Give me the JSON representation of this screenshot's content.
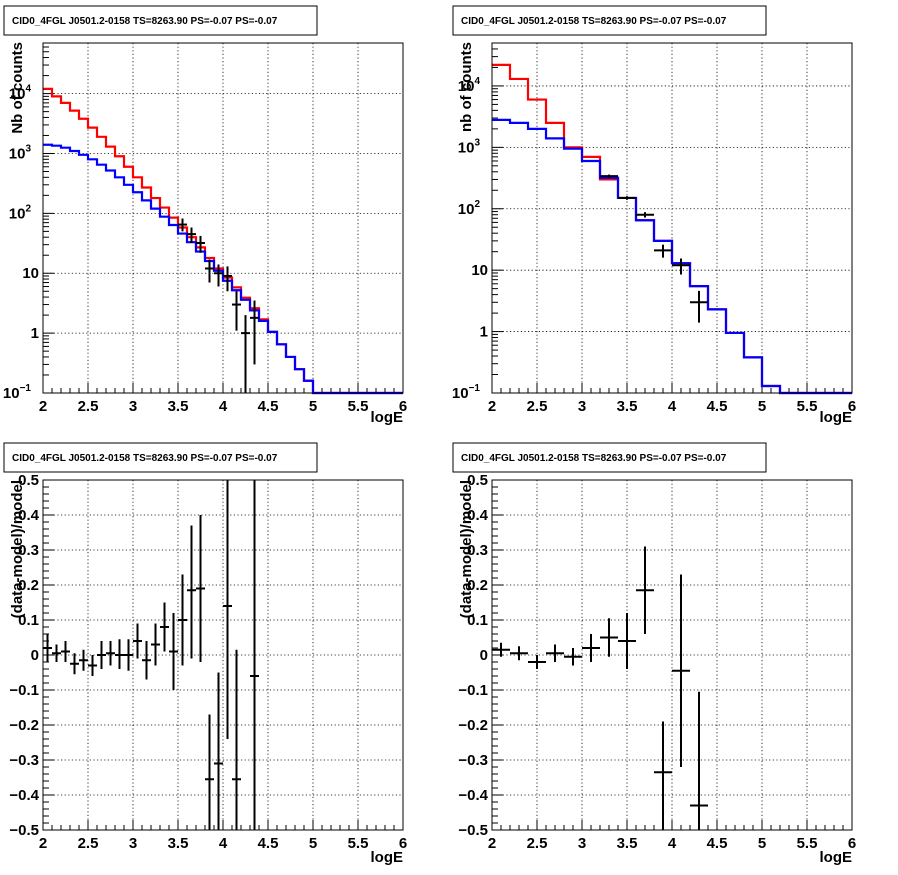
{
  "chart_data": [
    {
      "type": "line",
      "title": "CID0_4FGL J0501.2-0158 TS=8263.90 PS=-0.07 PS=-0.07",
      "xlabel": "logE",
      "ylabel": "Nb of counts",
      "xlim": [
        2,
        6
      ],
      "ylim": [
        0.1,
        70000
      ],
      "yscale": "log",
      "xticks": [
        "2",
        "2.5",
        "3",
        "3.5",
        "4",
        "4.5",
        "5",
        "5.5",
        "6"
      ],
      "yticks": [
        {
          "v": 0.1,
          "label": "10",
          "sup": "−1"
        },
        {
          "v": 1,
          "label": "1",
          "sup": ""
        },
        {
          "v": 10,
          "label": "10",
          "sup": ""
        },
        {
          "v": 100,
          "label": "10",
          "sup": "2"
        },
        {
          "v": 1000,
          "label": "10",
          "sup": "3"
        },
        {
          "v": 10000,
          "label": "10",
          "sup": "4"
        }
      ],
      "grid": true,
      "series": [
        {
          "color": "#ff0000",
          "style": "step",
          "edges": [
            2,
            2.1,
            2.2,
            2.3,
            2.4,
            2.5,
            2.6,
            2.7,
            2.8,
            2.9,
            3.0,
            3.1,
            3.2,
            3.3,
            3.4,
            3.5,
            3.6,
            3.7,
            3.8,
            3.9,
            4.0,
            4.1,
            4.2,
            4.3,
            4.4,
            4.5,
            4.6,
            4.7,
            4.8,
            4.9,
            5.0,
            5.1,
            5.2,
            5.3,
            5.4,
            5.5,
            5.6,
            5.7,
            5.8,
            5.9,
            6.0
          ],
          "values": [
            12000,
            9000,
            7000,
            5200,
            3800,
            2700,
            1900,
            1300,
            900,
            600,
            400,
            270,
            180,
            125,
            85,
            58,
            40,
            27,
            18,
            12,
            8.5,
            5.8,
            3.9,
            2.6,
            1.7,
            1.05,
            0.65,
            0.4,
            0.25,
            0.16,
            0.1,
            0.1,
            0.1,
            0.1,
            0.1,
            0.1,
            0.1,
            0.1,
            0.1,
            0.1
          ]
        },
        {
          "color": "#0000ff",
          "style": "step",
          "edges": [
            2,
            2.1,
            2.2,
            2.3,
            2.4,
            2.5,
            2.6,
            2.7,
            2.8,
            2.9,
            3.0,
            3.1,
            3.2,
            3.3,
            3.4,
            3.5,
            3.6,
            3.7,
            3.8,
            3.9,
            4.0,
            4.1,
            4.2,
            4.3,
            4.4,
            4.5,
            4.6,
            4.7,
            4.8,
            4.9,
            5.0,
            5.1,
            5.2,
            5.3,
            5.4,
            5.5,
            5.6,
            5.7,
            5.8,
            5.9,
            6.0
          ],
          "values": [
            1400,
            1350,
            1250,
            1100,
            950,
            800,
            650,
            520,
            400,
            300,
            225,
            165,
            120,
            88,
            64,
            46,
            33,
            23,
            16,
            11,
            7.5,
            5.2,
            3.6,
            2.4,
            1.6,
            1.05,
            0.65,
            0.4,
            0.25,
            0.16,
            0.1,
            0.1,
            0.1,
            0.1,
            0.1,
            0.1,
            0.1,
            0.1,
            0.1,
            0.1
          ]
        },
        {
          "color": "#000000",
          "style": "errorbar",
          "x": [
            3.55,
            3.65,
            3.75,
            3.85,
            3.95,
            4.05,
            4.15,
            4.25,
            4.35
          ],
          "xerr": 0.05,
          "y": [
            65,
            45,
            32,
            12,
            10,
            9,
            3,
            1,
            1.8
          ],
          "ylo": [
            50,
            32,
            22,
            7,
            6,
            5,
            1.1,
            0.1,
            0.3
          ],
          "yhi": [
            82,
            58,
            42,
            17,
            14,
            13,
            5,
            2,
            3.5
          ]
        }
      ]
    },
    {
      "type": "line",
      "title": "CID0_4FGL J0501.2-0158 TS=8263.90 PS=-0.07 PS=-0.07",
      "xlabel": "logE",
      "ylabel": "nb of counts",
      "xlim": [
        2,
        6
      ],
      "ylim": [
        0.1,
        50000
      ],
      "yscale": "log",
      "xticks": [
        "2",
        "2.5",
        "3",
        "3.5",
        "4",
        "4.5",
        "5",
        "5.5",
        "6"
      ],
      "yticks": [
        {
          "v": 0.1,
          "label": "10",
          "sup": "−1"
        },
        {
          "v": 1,
          "label": "1",
          "sup": ""
        },
        {
          "v": 10,
          "label": "10",
          "sup": ""
        },
        {
          "v": 100,
          "label": "10",
          "sup": "2"
        },
        {
          "v": 1000,
          "label": "10",
          "sup": "3"
        },
        {
          "v": 10000,
          "label": "10",
          "sup": "4"
        }
      ],
      "grid": true,
      "series": [
        {
          "color": "#ff0000",
          "style": "step",
          "edges": [
            2,
            2.2,
            2.4,
            2.6,
            2.8,
            3.0,
            3.2,
            3.4,
            3.6,
            3.8,
            4.0,
            4.2,
            4.4,
            4.6,
            4.8,
            5.0,
            5.2,
            5.4,
            5.6,
            5.8,
            6.0
          ],
          "values": [
            22000,
            13000,
            6000,
            2500,
            1000,
            700,
            300,
            150,
            65,
            30,
            13,
            5.5,
            2.3,
            0.95,
            0.38,
            0.13,
            0.1,
            0.1,
            0.1,
            0.1
          ]
        },
        {
          "color": "#0000ff",
          "style": "step",
          "edges": [
            2,
            2.2,
            2.4,
            2.6,
            2.8,
            3.0,
            3.2,
            3.4,
            3.6,
            3.8,
            4.0,
            4.2,
            4.4,
            4.6,
            4.8,
            5.0,
            5.2,
            5.4,
            5.6,
            5.8,
            6.0
          ],
          "values": [
            2800,
            2500,
            2000,
            1400,
            950,
            600,
            320,
            150,
            65,
            30,
            13,
            5.5,
            2.3,
            0.95,
            0.38,
            0.13,
            0.1,
            0.1,
            0.1,
            0.1
          ]
        },
        {
          "color": "#000000",
          "style": "errorbar",
          "x": [
            3.3,
            3.5,
            3.7,
            3.9,
            4.1,
            4.3
          ],
          "xerr": 0.1,
          "y": [
            340,
            150,
            80,
            21,
            12,
            3
          ],
          "ylo": [
            320,
            140,
            72,
            16,
            8.5,
            1.4
          ],
          "yhi": [
            360,
            160,
            88,
            26,
            15.5,
            4.6
          ]
        }
      ]
    },
    {
      "type": "scatter",
      "title": "CID0_4FGL J0501.2-0158 TS=8263.90 PS=-0.07 PS=-0.07",
      "xlabel": "logE",
      "ylabel": "(data-model)/model",
      "xlim": [
        2,
        6
      ],
      "ylim": [
        -0.5,
        0.5
      ],
      "yscale": "linear",
      "xticks": [
        "2",
        "2.5",
        "3",
        "3.5",
        "4",
        "4.5",
        "5",
        "5.5",
        "6"
      ],
      "yticks": [
        {
          "v": -0.5,
          "label": "−0.5"
        },
        {
          "v": -0.4,
          "label": "−0.4"
        },
        {
          "v": -0.3,
          "label": "−0.3"
        },
        {
          "v": -0.2,
          "label": "−0.2"
        },
        {
          "v": -0.1,
          "label": "−0.1"
        },
        {
          "v": 0,
          "label": "0"
        },
        {
          "v": 0.1,
          "label": "0.1"
        },
        {
          "v": 0.2,
          "label": "0.2"
        },
        {
          "v": 0.3,
          "label": "0.3"
        },
        {
          "v": 0.4,
          "label": "0.4"
        },
        {
          "v": 0.5,
          "label": "0.5"
        }
      ],
      "grid": true,
      "series": [
        {
          "color": "#000000",
          "style": "errorbar",
          "xerr": 0.05,
          "x": [
            2.05,
            2.15,
            2.25,
            2.35,
            2.45,
            2.55,
            2.65,
            2.75,
            2.85,
            2.95,
            3.05,
            3.15,
            3.25,
            3.35,
            3.45,
            3.55,
            3.65,
            3.75,
            3.85,
            3.95,
            4.05,
            4.15,
            4.35
          ],
          "y": [
            0.02,
            0.005,
            0.01,
            -0.025,
            -0.015,
            -0.03,
            0.0,
            0.005,
            0.0,
            0.0,
            0.04,
            -0.015,
            0.03,
            0.08,
            0.01,
            0.1,
            0.185,
            0.19,
            -0.355,
            -0.31,
            0.14,
            -0.355,
            -0.06
          ],
          "ylo": [
            -0.02,
            -0.02,
            -0.02,
            -0.055,
            -0.045,
            -0.06,
            -0.04,
            -0.03,
            -0.04,
            -0.045,
            -0.01,
            -0.07,
            -0.03,
            0.01,
            -0.1,
            -0.03,
            -0.01,
            -0.02,
            -0.5,
            -0.5,
            -0.24,
            -0.5,
            -0.5
          ],
          "yhi": [
            0.06,
            0.03,
            0.04,
            0.005,
            0.015,
            0.0,
            0.04,
            0.04,
            0.045,
            0.045,
            0.09,
            0.04,
            0.09,
            0.15,
            0.12,
            0.23,
            0.37,
            0.4,
            -0.17,
            -0.05,
            0.5,
            0.015,
            0.5
          ]
        }
      ]
    },
    {
      "type": "scatter",
      "title": "CID0_4FGL J0501.2-0158 TS=8263.90 PS=-0.07 PS=-0.07",
      "xlabel": "logE",
      "ylabel": "(data-model)/model",
      "xlim": [
        2,
        6
      ],
      "ylim": [
        -0.5,
        0.5
      ],
      "yscale": "linear",
      "xticks": [
        "2",
        "2.5",
        "3",
        "3.5",
        "4",
        "4.5",
        "5",
        "5.5",
        "6"
      ],
      "yticks": [
        {
          "v": -0.5,
          "label": "−0.5"
        },
        {
          "v": -0.4,
          "label": "−0.4"
        },
        {
          "v": -0.3,
          "label": "−0.3"
        },
        {
          "v": -0.2,
          "label": "−0.2"
        },
        {
          "v": -0.1,
          "label": "−0.1"
        },
        {
          "v": 0,
          "label": "0"
        },
        {
          "v": 0.1,
          "label": "0.1"
        },
        {
          "v": 0.2,
          "label": "0.2"
        },
        {
          "v": 0.3,
          "label": "0.3"
        },
        {
          "v": 0.4,
          "label": "0.4"
        },
        {
          "v": 0.5,
          "label": "0.5"
        }
      ],
      "grid": true,
      "series": [
        {
          "color": "#000000",
          "style": "errorbar",
          "xerr": 0.1,
          "x": [
            2.1,
            2.3,
            2.5,
            2.7,
            2.9,
            3.1,
            3.3,
            3.5,
            3.7,
            3.9,
            4.1,
            4.3
          ],
          "y": [
            0.015,
            0.005,
            -0.02,
            0.005,
            -0.005,
            0.02,
            0.05,
            0.04,
            0.185,
            -0.335,
            -0.045,
            -0.43
          ],
          "ylo": [
            -0.005,
            -0.015,
            -0.04,
            -0.02,
            -0.03,
            -0.02,
            -0.005,
            -0.04,
            0.06,
            -0.5,
            -0.32,
            -0.5
          ],
          "yhi": [
            0.035,
            0.025,
            0.0,
            0.03,
            0.02,
            0.06,
            0.105,
            0.12,
            0.31,
            -0.19,
            0.23,
            -0.105
          ]
        }
      ]
    }
  ]
}
